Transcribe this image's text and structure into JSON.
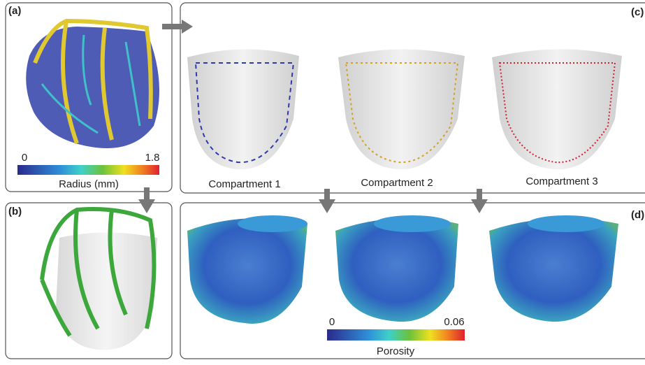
{
  "panels": {
    "a": {
      "label": "(a)",
      "colorbar": {
        "min": "0",
        "max": "1.8",
        "title": "Radius (mm)"
      }
    },
    "b": {
      "label": "(b)"
    },
    "c": {
      "label": "(c)",
      "compartments": [
        "Compartment 1",
        "Compartment 2",
        "Compartment 3"
      ]
    },
    "d": {
      "label": "(d)",
      "colorbar": {
        "min": "0",
        "max": "0.06",
        "title": "Porosity"
      }
    }
  }
}
